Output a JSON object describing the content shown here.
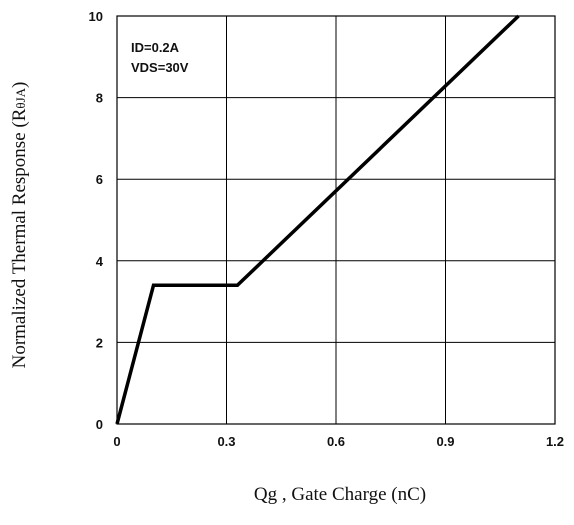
{
  "chart_data": {
    "type": "line",
    "title": "",
    "xlabel": "Qg , Gate Charge (nC)",
    "ylabel": "Normalized Thermal Response",
    "ylabel_symbol": "(R",
    "ylabel_subscript": "θJA",
    "ylabel_close": ")",
    "xlim": [
      0,
      1.2
    ],
    "ylim": [
      0,
      10
    ],
    "x_ticks": [
      0,
      0.3,
      0.6,
      0.9,
      1.2
    ],
    "x_tick_labels": [
      "0",
      "0.3",
      "0.6",
      "0.9",
      "1.2"
    ],
    "y_ticks": [
      0,
      2,
      4,
      6,
      8,
      10
    ],
    "y_tick_labels": [
      "0",
      "2",
      "4",
      "6",
      "8",
      "10"
    ],
    "grid": true,
    "annotations": [
      "ID=0.2A",
      "VDS=30V"
    ],
    "series": [
      {
        "color": "#000000",
        "x": [
          0,
          0.1,
          0.33,
          1.1
        ],
        "y": [
          0,
          3.4,
          3.4,
          10
        ]
      }
    ]
  }
}
